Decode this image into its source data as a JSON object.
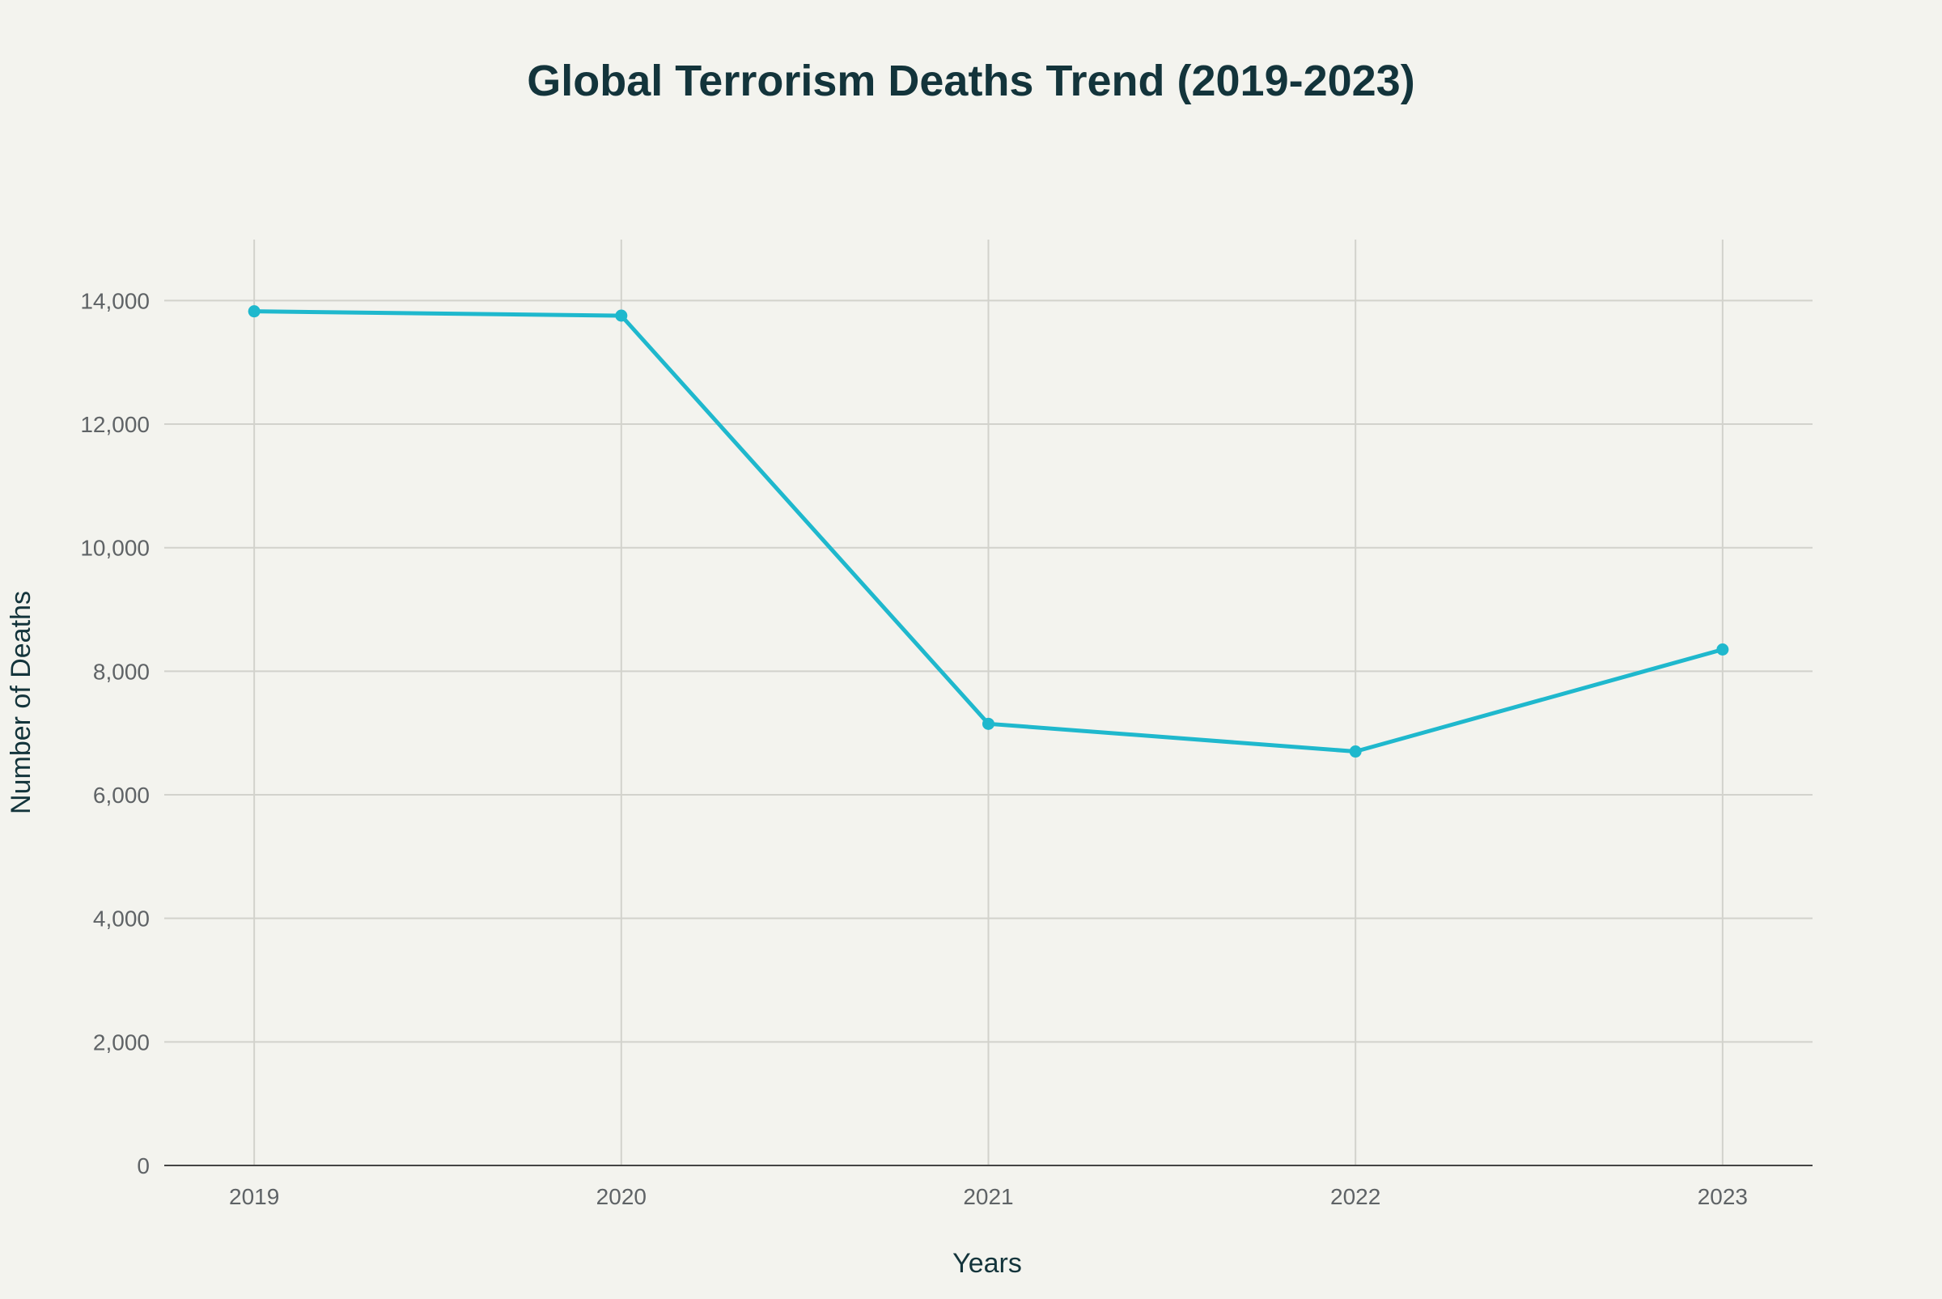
{
  "chart_data": {
    "type": "line",
    "title": "Global Terrorism Deaths Trend (2019-2023)",
    "xlabel": "Years",
    "ylabel": "Number of Deaths",
    "categories": [
      "2019",
      "2020",
      "2021",
      "2022",
      "2023"
    ],
    "series": [
      {
        "values": [
          13826,
          13756,
          7149,
          6701,
          8352
        ],
        "color": "#1fb8cd"
      }
    ],
    "ylim": [
      0,
      15000
    ],
    "yticks": [
      0,
      2000,
      4000,
      6000,
      8000,
      10000,
      12000,
      14000
    ],
    "ytick_labels": [
      "0",
      "2,000",
      "4,000",
      "6,000",
      "8,000",
      "10,000",
      "12,000",
      "14,000"
    ],
    "grid": true,
    "markers": true,
    "background": "#f3f3ee"
  }
}
